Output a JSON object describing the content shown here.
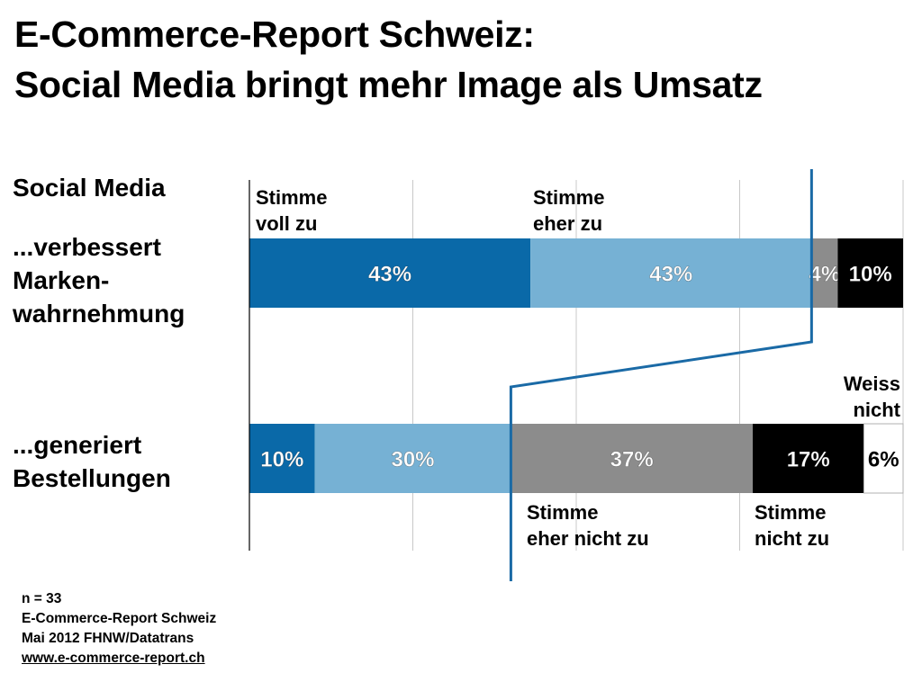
{
  "title": {
    "line1": "E-Commerce-Report Schweiz:",
    "line2": "Social Media bringt mehr Image als Umsatz"
  },
  "heading": "Social Media",
  "footer": {
    "n": "n = 33",
    "source": "E-Commerce-Report Schweiz",
    "date": "Mai 2012 FHNW/Datatrans",
    "url": "www.e-commerce-report.ch"
  },
  "chart_data": {
    "type": "bar",
    "orientation": "horizontal",
    "stacked": true,
    "percent_scale": [
      0,
      100
    ],
    "grid": true,
    "categories": [
      "...verbessert\nMarken-\nwahrnehmung",
      "...generiert\nBestellungen"
    ],
    "series": [
      {
        "name": "Stimme\nvoll zu",
        "color": "#0a69a8",
        "values": [
          43,
          10
        ]
      },
      {
        "name": "Stimme\neher zu",
        "color": "#76b1d4",
        "values": [
          43,
          30
        ]
      },
      {
        "name": "Stimme\neher nicht zu",
        "color": "#8c8c8c",
        "values": [
          4,
          37
        ]
      },
      {
        "name": "Stimme\nnicht zu",
        "color": "#000000",
        "values": [
          10,
          17
        ]
      },
      {
        "name": "Weiss\nnicht",
        "color": "#ffffff",
        "values": [
          0,
          6
        ]
      }
    ],
    "data_labels": [
      [
        "43%",
        "43%",
        "4%",
        "10%",
        ""
      ],
      [
        "10%",
        "30%",
        "37%",
        "17%",
        "6%"
      ]
    ],
    "divider_color": "#1a6aa6"
  }
}
